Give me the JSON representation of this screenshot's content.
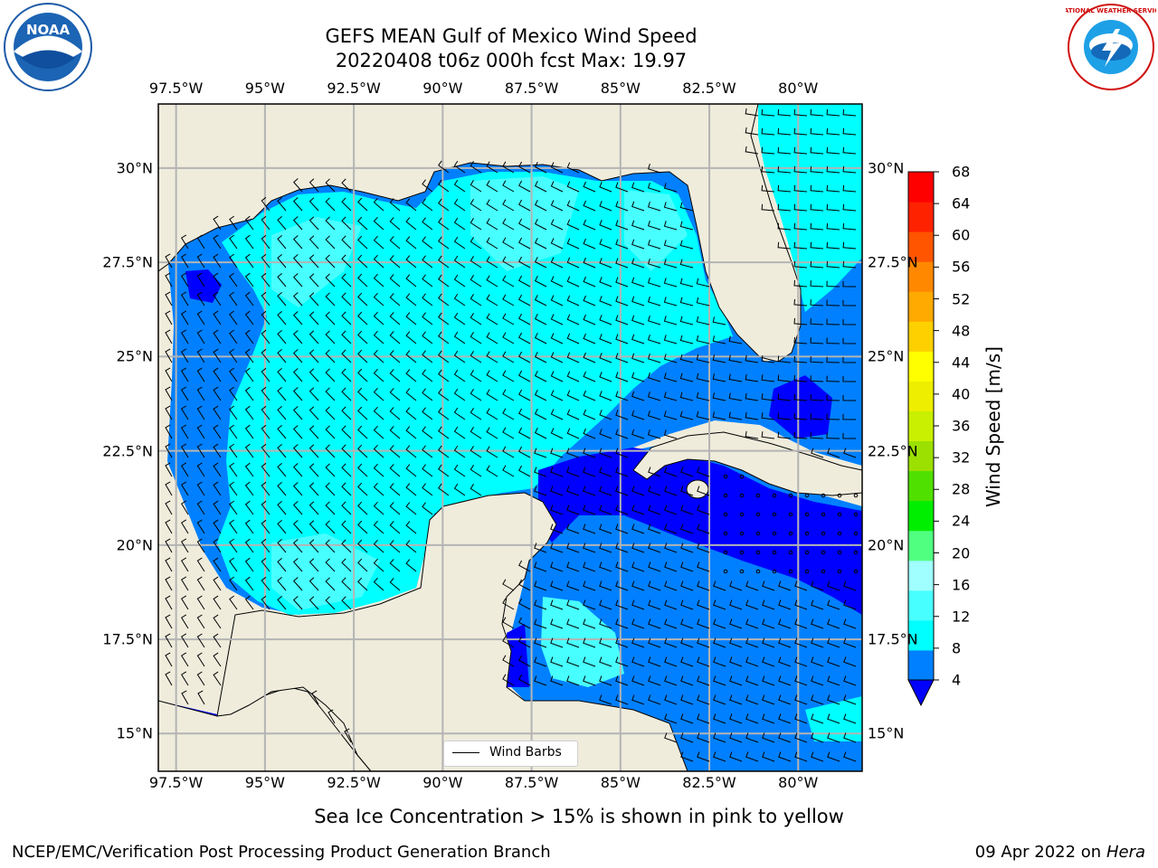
{
  "title": {
    "line1": "GEFS MEAN Gulf of Mexico Wind Speed",
    "line2": "20220408 t06z 000h fcst   Max: 19.97"
  },
  "map": {
    "lon_ticks": [
      "97.5°W",
      "95°W",
      "92.5°W",
      "90°W",
      "87.5°W",
      "85°W",
      "82.5°W",
      "80°W"
    ],
    "lat_ticks": [
      "30°N",
      "27.5°N",
      "25°N",
      "22.5°N",
      "20°N",
      "17.5°N",
      "15°N"
    ],
    "lon_range": [
      -98,
      -78.2
    ],
    "lat_range": [
      14,
      31.7
    ],
    "land_color": "#efecdc",
    "gridlines": true,
    "legend_label": "Wind Barbs",
    "wind_barbs_note": "Wind Barbs"
  },
  "colorbar": {
    "label": "Wind Speed [m/s]",
    "ticks": [
      "68",
      "64",
      "60",
      "56",
      "52",
      "48",
      "44",
      "40",
      "36",
      "32",
      "28",
      "24",
      "20",
      "16",
      "12",
      "8",
      "4"
    ],
    "colors": [
      "#0000ff",
      "#0080ff",
      "#00ffff",
      "#48ffff",
      "#a0ffff",
      "#50ff80",
      "#00ee00",
      "#4fe000",
      "#9be000",
      "#c8f000",
      "#eeee00",
      "#ffff00",
      "#ffd000",
      "#ffaa00",
      "#ff8800",
      "#ff5500",
      "#ff2200",
      "#ff0000"
    ]
  },
  "subnote": "Sea Ice Concentration > 15% is shown in pink to yellow",
  "footer": {
    "left": "NCEP/EMC/Verification Post Processing Product Generation Branch",
    "right_date": "09 Apr 2022 on ",
    "right_machine": "Hera"
  },
  "logos": {
    "noaa_text": "NOAA",
    "nws_text": "NATIONAL WEATHER SERVICE"
  }
}
